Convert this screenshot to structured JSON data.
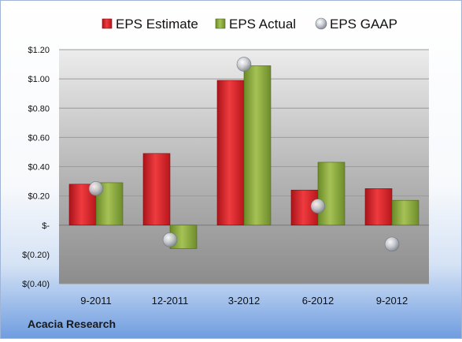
{
  "chart_data": {
    "type": "bar",
    "categories": [
      "9-2011",
      "12-2011",
      "3-2012",
      "6-2012",
      "9-2012"
    ],
    "series": [
      {
        "name": "EPS Estimate",
        "kind": "bar",
        "color": "#d9252b",
        "values": [
          0.28,
          0.49,
          0.99,
          0.24,
          0.25
        ]
      },
      {
        "name": "EPS Actual",
        "kind": "bar",
        "color": "#8aa63b",
        "values": [
          0.29,
          -0.16,
          1.09,
          0.43,
          0.17
        ]
      },
      {
        "name": "EPS GAAP",
        "kind": "marker",
        "color": "#b8bcc4",
        "values": [
          0.25,
          -0.1,
          1.1,
          0.13,
          -0.13
        ]
      }
    ],
    "ylim": [
      -0.4,
      1.2
    ],
    "yticks": [
      {
        "value": 1.2,
        "label": "$1.20"
      },
      {
        "value": 1.0,
        "label": "$1.00"
      },
      {
        "value": 0.8,
        "label": "$0.80"
      },
      {
        "value": 0.6,
        "label": "$0.60"
      },
      {
        "value": 0.4,
        "label": "$0.40"
      },
      {
        "value": 0.2,
        "label": "$0.20"
      },
      {
        "value": 0.0,
        "label": "$-"
      },
      {
        "value": -0.2,
        "label": "$(0.20)"
      },
      {
        "value": -0.4,
        "label": "$(0.40)"
      }
    ],
    "grid": true,
    "legend_position": "top",
    "title": "",
    "xlabel": "",
    "ylabel": ""
  },
  "company": "Acacia Research"
}
